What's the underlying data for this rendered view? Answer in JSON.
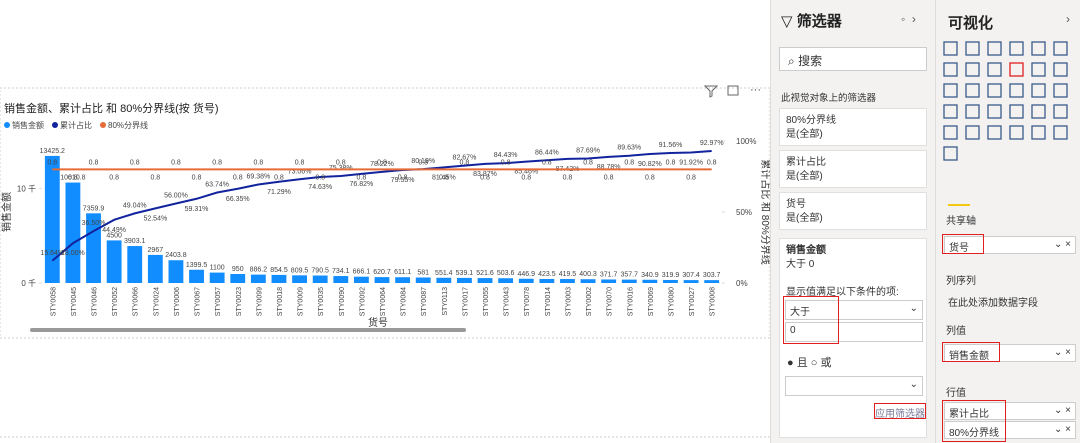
{
  "chart_data": {
    "type": "bar-line",
    "title": "销售金额、累计占比 和 80%分界线(按 货号)",
    "x_label": "货号",
    "y_label": "销售金额",
    "y2_label": "累计占比 和 80%分界线",
    "categories": [
      "STY0058",
      "STY0045",
      "STY0046",
      "STY0052",
      "STY0066",
      "STY0024",
      "STY0006",
      "STY0067",
      "STY0057",
      "STY0023",
      "STY0099",
      "STY0018",
      "STY0009",
      "STY0035",
      "STY0090",
      "STY0092",
      "STY0064",
      "STY0084",
      "STY0087",
      "STY0113",
      "STY0017",
      "STY0055",
      "STY0043",
      "STY0078",
      "STY0014",
      "STY0003",
      "STY0002",
      "STY0070",
      "STY0016",
      "STY0069",
      "STY0080",
      "STY0027",
      "STY0008"
    ],
    "series": [
      {
        "name": "销售金额",
        "color": "#118dff",
        "values": [
          13425.2,
          10610.8,
          7359.9,
          4500,
          3903.1,
          2967,
          2403.8,
          1399.5,
          1100,
          950,
          886.2,
          854.5,
          809.5,
          790.5,
          734.1,
          666.1,
          620.7,
          611.1,
          581,
          551.4,
          539.1,
          521.6,
          503.6,
          446.9,
          423.5,
          419.5,
          400.3,
          371.7,
          357.7,
          340.9,
          319.9,
          307.4,
          303.7
        ]
      },
      {
        "name": "累计占比",
        "color": "#12239e",
        "axis": "y2",
        "values": [
          0.1564,
          0.28,
          0.365,
          0.4449,
          0.4904,
          0.5254,
          0.56,
          0.5931,
          0.6374,
          0.6635,
          0.6938,
          0.7129,
          0.7306,
          0.7463,
          0.7538,
          0.7682,
          0.7822,
          0.7955,
          0.8019,
          0.8145,
          0.8267,
          0.8387,
          0.8443,
          0.8546,
          0.8644,
          0.8742,
          0.8769,
          0.8878,
          0.8963,
          0.9082,
          0.9156,
          0.9192,
          0.9297
        ],
        "value_labels": [
          "15.64%",
          "28.00%",
          "36.50%",
          "44.49%",
          "49.04%",
          "52.54%",
          "56.00%",
          "59.31%",
          "63.74%",
          "66.35%",
          "69.38%",
          "71.29%",
          "73.06%",
          "74.63%",
          "75.38%",
          "76.82%",
          "78.22%",
          "79.55%",
          "80.19%",
          "81.45%",
          "82.67%",
          "83.87%",
          "84.43%",
          "85.46%",
          "86.44%",
          "87.42%",
          "87.69%",
          "88.78%",
          "89.63%",
          "90.82%",
          "91.56%",
          "91.92%",
          "92.97%"
        ]
      },
      {
        "name": "80%分界线",
        "color": "#e66c37",
        "axis": "y2",
        "values": [
          0.8,
          0.8,
          0.8,
          0.8,
          0.8,
          0.8,
          0.8,
          0.8,
          0.8,
          0.8,
          0.8,
          0.8,
          0.8,
          0.8,
          0.8,
          0.8,
          0.8,
          0.8,
          0.8,
          0.8,
          0.8,
          0.8,
          0.8,
          0.8,
          0.8,
          0.8,
          0.8,
          0.8,
          0.8,
          0.8,
          0.8,
          0.8,
          0.8
        ]
      }
    ],
    "ylim": [
      0,
      15000
    ],
    "yticks": [
      {
        "value": 0,
        "label": "0 千"
      },
      {
        "value": 10000,
        "label": "10 千"
      }
    ],
    "y2lim": [
      0,
      1
    ],
    "y2ticks": [
      {
        "value": 0,
        "label": "0%"
      },
      {
        "value": 0.5,
        "label": "50%"
      },
      {
        "value": 1,
        "label": "100%"
      }
    ],
    "legend": "top-left"
  },
  "filter_pane": {
    "title": "筛选器",
    "search": "搜索",
    "section": "此视觉对象上的筛选器",
    "cards": [
      {
        "field": "80%分界线",
        "state": "是(全部)"
      },
      {
        "field": "累计占比",
        "state": "是(全部)"
      },
      {
        "field": "货号",
        "state": "是(全部)"
      }
    ],
    "active": {
      "field": "销售金额",
      "state": "大于 0",
      "prompt": "显示值满足以下条件的项:",
      "operator": "大于",
      "value": "0",
      "and": "且",
      "or": "或",
      "apply": "应用筛选器"
    }
  },
  "viz_pane": {
    "title": "可视化",
    "shared_axis": "共享轴",
    "shared_axis_field": "货号",
    "column_series": "列序列",
    "column_series_hint": "在此处添加数据字段",
    "column_values": "列值",
    "column_values_field": "销售金额",
    "line_values": "行值",
    "line_values_fields": [
      "累计占比",
      "80%分界线"
    ]
  }
}
